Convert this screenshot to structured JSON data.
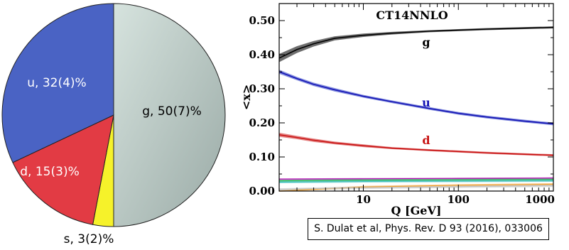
{
  "chart_data": [
    {
      "type": "pie",
      "slices": [
        {
          "label": "g, 50(7)%",
          "value": 50,
          "color": "#bfcfc9"
        },
        {
          "label": "u, 32(4)%",
          "value": 32,
          "color": "#4a63c4"
        },
        {
          "label": "d, 15(3)%",
          "value": 15,
          "color": "#e23b44"
        },
        {
          "label": "s, 3(2)%",
          "value": 3,
          "color": "#f6f22a"
        }
      ]
    },
    {
      "type": "line",
      "title": "CT14NNLO",
      "xlabel": "Q [GeV]",
      "ylabel": "<x>",
      "xscale": "log",
      "xlim": [
        1.3,
        1000
      ],
      "ylim": [
        0,
        0.55
      ],
      "x_ticks": [
        10,
        100,
        1000
      ],
      "x_tick_labels": [
        "10",
        "100",
        "1000"
      ],
      "y_ticks": [
        0,
        0.1,
        0.2,
        0.3,
        0.4,
        0.5
      ],
      "y_tick_labels": [
        "0.00",
        "0.10",
        "0.20",
        "0.30",
        "0.40",
        "0.50"
      ],
      "grid": false,
      "series": [
        {
          "name": "g",
          "color": "#000000",
          "band": "#555555",
          "x": [
            1.3,
            2,
            3,
            5,
            10,
            20,
            50,
            100,
            200,
            500,
            1000
          ],
          "y": [
            0.39,
            0.415,
            0.432,
            0.448,
            0.457,
            0.463,
            0.469,
            0.472,
            0.475,
            0.478,
            0.48
          ],
          "err": [
            0.012,
            0.01,
            0.008,
            0.006,
            0.005,
            0.004,
            0.003,
            0.003,
            0.003,
            0.003,
            0.003
          ]
        },
        {
          "name": "u",
          "color": "#1414b4",
          "band": "#6e7ad8",
          "x": [
            1.3,
            2,
            3,
            5,
            10,
            20,
            50,
            100,
            200,
            500,
            1000
          ],
          "y": [
            0.35,
            0.33,
            0.313,
            0.297,
            0.278,
            0.262,
            0.242,
            0.228,
            0.217,
            0.205,
            0.197
          ],
          "err": [
            0.006,
            0.005,
            0.005,
            0.005,
            0.004,
            0.004,
            0.004,
            0.004,
            0.004,
            0.004,
            0.004
          ]
        },
        {
          "name": "d",
          "color": "#c81414",
          "band": "#e07070",
          "x": [
            1.3,
            2,
            3,
            5,
            10,
            20,
            50,
            100,
            200,
            500,
            1000
          ],
          "y": [
            0.165,
            0.157,
            0.149,
            0.141,
            0.133,
            0.126,
            0.12,
            0.116,
            0.112,
            0.108,
            0.105
          ],
          "err": [
            0.006,
            0.005,
            0.005,
            0.004,
            0.004,
            0.003,
            0.003,
            0.003,
            0.003,
            0.003,
            0.003
          ]
        },
        {
          "color": "#b000b0",
          "x": [
            1.3,
            10,
            100,
            1000
          ],
          "y": [
            0.035,
            0.036,
            0.037,
            0.038
          ],
          "err": [
            0.002,
            0.002,
            0.002,
            0.002
          ]
        },
        {
          "color": "#20b050",
          "x": [
            1.3,
            10,
            100,
            1000
          ],
          "y": [
            0.03,
            0.032,
            0.033,
            0.034
          ],
          "err": [
            0.003,
            0.003,
            0.003,
            0.003
          ]
        },
        {
          "color": "#40c0c0",
          "x": [
            1.3,
            10,
            100,
            1000
          ],
          "y": [
            0.026,
            0.028,
            0.029,
            0.03
          ],
          "err": [
            0.003,
            0.003,
            0.003,
            0.003
          ]
        },
        {
          "color": "#f0a030",
          "x": [
            1.3,
            10,
            100,
            1000
          ],
          "y": [
            0.0,
            0.012,
            0.017,
            0.02
          ],
          "err": [
            0.002,
            0.003,
            0.003,
            0.003
          ]
        },
        {
          "color": "#c0c0c0",
          "x": [
            1.3,
            10,
            100,
            1000
          ],
          "y": [
            0.005,
            0.01,
            0.013,
            0.016
          ],
          "err": [
            0.003,
            0.004,
            0.004,
            0.004
          ]
        }
      ]
    }
  ],
  "citation": "S. Dulat et al, Phys. Rev. D 93  (2016), 033006"
}
